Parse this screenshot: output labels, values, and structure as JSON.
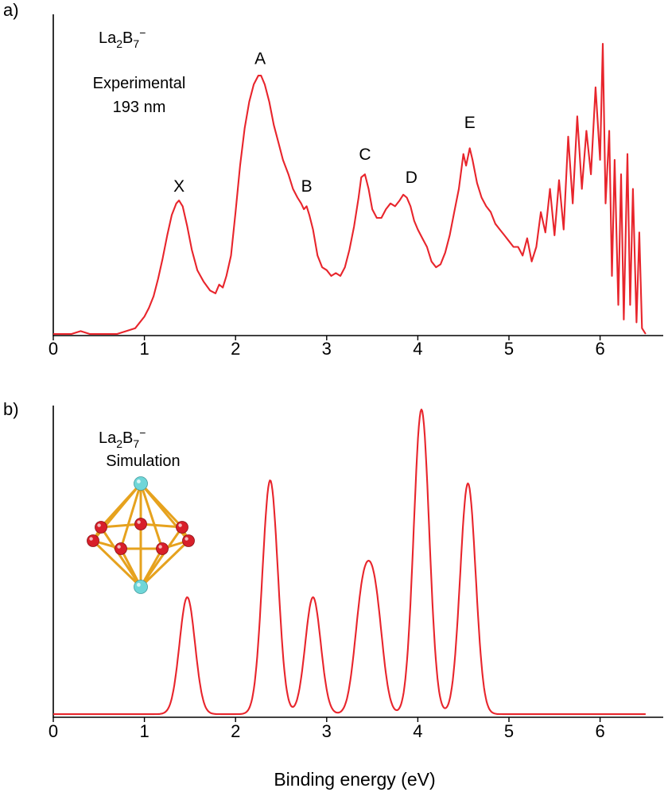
{
  "colors": {
    "curve": "#e8252c",
    "axis": "#000000",
    "boron_atom": "#d81f2a",
    "lanthanum_atom": "#6fd6d8",
    "bond": "#e6a21e"
  },
  "axis_title": "Binding energy (eV)",
  "chart_data": [
    {
      "type": "line",
      "panel": "a)",
      "annotations": [
        "Experimental",
        "193 nm"
      ],
      "species": {
        "base": "La",
        "sub1": "2",
        "mid": "B",
        "sub2": "7",
        "sup": "−"
      },
      "xlabel": "",
      "xlim": [
        0,
        6.5
      ],
      "xticks": [
        "0",
        "1",
        "2",
        "3",
        "4",
        "5",
        "6"
      ],
      "ylim": [
        0,
        1
      ],
      "grid": false,
      "peak_labels": [
        {
          "text": "X",
          "x": 1.38,
          "y": 0.49
        },
        {
          "text": "A",
          "x": 2.27,
          "y": 0.93
        },
        {
          "text": "B",
          "x": 2.78,
          "y": 0.49
        },
        {
          "text": "C",
          "x": 3.42,
          "y": 0.6
        },
        {
          "text": "D",
          "x": 3.93,
          "y": 0.52
        },
        {
          "text": "E",
          "x": 4.57,
          "y": 0.71
        }
      ],
      "series": [
        {
          "x": [
            0.0,
            0.1,
            0.2,
            0.3,
            0.4,
            0.5,
            0.6,
            0.7,
            0.8,
            0.9,
            1.0,
            1.05,
            1.1,
            1.15,
            1.2,
            1.25,
            1.3,
            1.35,
            1.38,
            1.42,
            1.47,
            1.52,
            1.58,
            1.65,
            1.72,
            1.78,
            1.82,
            1.86,
            1.9,
            1.95,
            2.0,
            2.05,
            2.1,
            2.15,
            2.2,
            2.25,
            2.28,
            2.32,
            2.37,
            2.42,
            2.47,
            2.52,
            2.58,
            2.63,
            2.68,
            2.72,
            2.75,
            2.78,
            2.81,
            2.85,
            2.9,
            2.95,
            3.0,
            3.05,
            3.1,
            3.15,
            3.2,
            3.25,
            3.3,
            3.35,
            3.38,
            3.42,
            3.46,
            3.5,
            3.55,
            3.6,
            3.65,
            3.7,
            3.75,
            3.8,
            3.84,
            3.88,
            3.92,
            3.96,
            4.0,
            4.05,
            4.1,
            4.15,
            4.2,
            4.25,
            4.3,
            4.35,
            4.4,
            4.45,
            4.5,
            4.53,
            4.57,
            4.6,
            4.65,
            4.7,
            4.75,
            4.8,
            4.85,
            4.9,
            4.95,
            5.0,
            5.05,
            5.1,
            5.15,
            5.2,
            5.25,
            5.3,
            5.35,
            5.4,
            5.45,
            5.5,
            5.55,
            5.6,
            5.65,
            5.7,
            5.75,
            5.8,
            5.85,
            5.9,
            5.95,
            6.0,
            6.03,
            6.06,
            6.1,
            6.13,
            6.16,
            6.2,
            6.23,
            6.26,
            6.3,
            6.33,
            6.36,
            6.4,
            6.43,
            6.46,
            6.5
          ],
          "values": [
            0.0,
            0.0,
            0.0,
            0.01,
            0.0,
            0.0,
            0.0,
            0.0,
            0.01,
            0.02,
            0.06,
            0.09,
            0.13,
            0.19,
            0.26,
            0.34,
            0.41,
            0.45,
            0.46,
            0.44,
            0.37,
            0.29,
            0.22,
            0.18,
            0.15,
            0.14,
            0.17,
            0.16,
            0.2,
            0.27,
            0.42,
            0.58,
            0.71,
            0.8,
            0.86,
            0.89,
            0.89,
            0.86,
            0.8,
            0.72,
            0.66,
            0.6,
            0.55,
            0.5,
            0.47,
            0.45,
            0.43,
            0.44,
            0.41,
            0.36,
            0.27,
            0.23,
            0.22,
            0.2,
            0.21,
            0.2,
            0.23,
            0.29,
            0.37,
            0.47,
            0.54,
            0.55,
            0.5,
            0.43,
            0.4,
            0.4,
            0.43,
            0.45,
            0.44,
            0.46,
            0.48,
            0.47,
            0.44,
            0.39,
            0.36,
            0.33,
            0.3,
            0.25,
            0.23,
            0.24,
            0.28,
            0.34,
            0.42,
            0.5,
            0.62,
            0.58,
            0.64,
            0.6,
            0.52,
            0.47,
            0.44,
            0.42,
            0.38,
            0.36,
            0.34,
            0.32,
            0.3,
            0.3,
            0.27,
            0.33,
            0.25,
            0.3,
            0.42,
            0.35,
            0.5,
            0.34,
            0.53,
            0.36,
            0.68,
            0.45,
            0.75,
            0.5,
            0.7,
            0.55,
            0.85,
            0.6,
            1.0,
            0.45,
            0.7,
            0.2,
            0.6,
            0.1,
            0.55,
            0.05,
            0.62,
            0.1,
            0.5,
            0.04,
            0.35,
            0.02,
            0.0
          ]
        }
      ]
    },
    {
      "type": "line",
      "panel": "b)",
      "annotations": [
        "Simulation"
      ],
      "species": {
        "base": "La",
        "sub1": "2",
        "mid": "B",
        "sub2": "7",
        "sup": "−"
      },
      "xlabel": "Binding energy (eV)",
      "xlim": [
        0,
        6.5
      ],
      "xticks": [
        "0",
        "1",
        "2",
        "3",
        "4",
        "5",
        "6"
      ],
      "ylim": [
        0,
        1
      ],
      "grid": false,
      "series": [
        {
          "peaks": [
            {
              "center": 1.47,
              "height": 0.38
            },
            {
              "center": 2.38,
              "height": 0.76
            },
            {
              "center": 2.85,
              "height": 0.38
            },
            {
              "center": 3.39,
              "height": 0.35
            },
            {
              "center": 3.53,
              "height": 0.35
            },
            {
              "center": 4.04,
              "height": 0.99
            },
            {
              "center": 4.55,
              "height": 0.75
            }
          ],
          "width_sigma": 0.085,
          "baseline": 0.005
        }
      ]
    }
  ]
}
